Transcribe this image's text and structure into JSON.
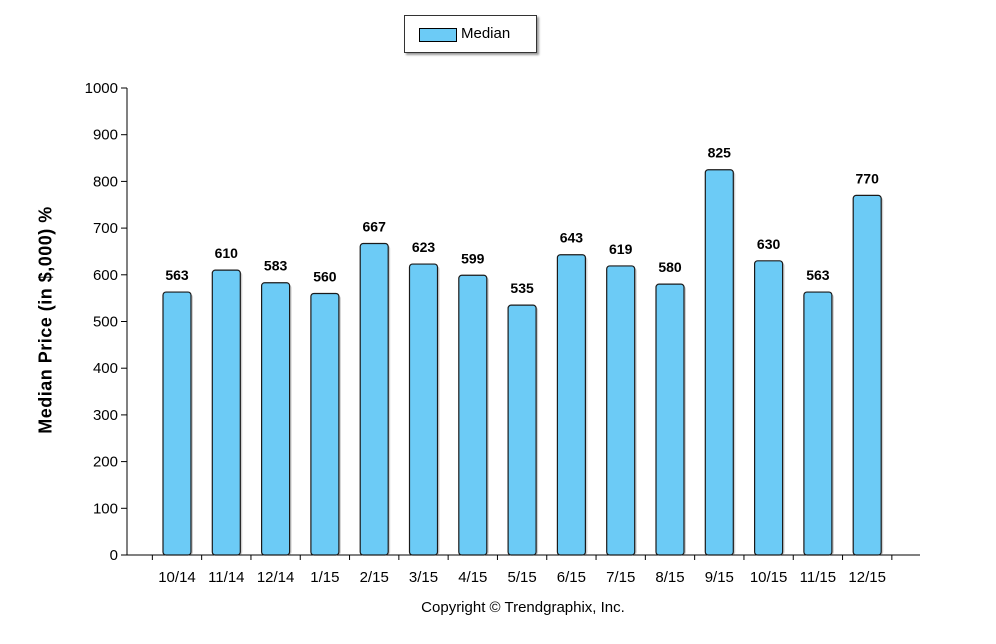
{
  "legend": {
    "label": "Median",
    "swatch_color": "#6ccbf6"
  },
  "footnote": "Copyright © Trendgraphix, Inc.",
  "chart_data": {
    "type": "bar",
    "title": "",
    "xlabel": "",
    "ylabel": "Median Price (in $,000) %",
    "ylim": [
      0,
      1000
    ],
    "yticks": [
      0,
      100,
      200,
      300,
      400,
      500,
      600,
      700,
      800,
      900,
      1000
    ],
    "grid": false,
    "legend_position": "top-center",
    "categories": [
      "10/14",
      "11/14",
      "12/14",
      "1/15",
      "2/15",
      "3/15",
      "4/15",
      "5/15",
      "6/15",
      "7/15",
      "8/15",
      "9/15",
      "10/15",
      "11/15",
      "12/15"
    ],
    "series": [
      {
        "name": "Median",
        "color": "#6ccbf6",
        "values": [
          563,
          610,
          583,
          560,
          667,
          623,
          599,
          535,
          643,
          619,
          580,
          825,
          630,
          563,
          770
        ]
      }
    ]
  }
}
